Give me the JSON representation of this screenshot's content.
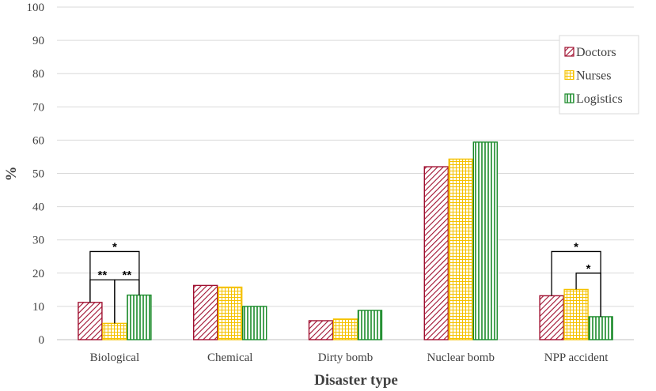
{
  "chart_data": {
    "type": "bar",
    "title": "",
    "xlabel": "Disaster type",
    "ylabel": "%",
    "ylim": [
      0,
      100
    ],
    "yticks": [
      0,
      10,
      20,
      30,
      40,
      50,
      60,
      70,
      80,
      90,
      100
    ],
    "grid": true,
    "legend_position": "top-right",
    "categories": [
      "Biological",
      "Chemical",
      "Dirty bomb",
      "Nuclear bomb",
      "NPP accident"
    ],
    "series": [
      {
        "name": "Doctors",
        "values": [
          11.2,
          16.3,
          5.7,
          52.0,
          13.2
        ],
        "color": "#a01030",
        "pattern": "diagonal"
      },
      {
        "name": "Nurses",
        "values": [
          4.9,
          15.8,
          6.2,
          54.3,
          15.1
        ],
        "color": "#f5c200",
        "pattern": "grid"
      },
      {
        "name": "Logistics",
        "values": [
          13.4,
          10.0,
          8.8,
          59.4,
          6.9
        ],
        "color": "#1a8a2a",
        "pattern": "vertical"
      }
    ],
    "annotations": [
      {
        "category": "Biological",
        "from": "Doctors",
        "to": "Nurses",
        "label": "**",
        "top": 18
      },
      {
        "category": "Biological",
        "from": "Nurses",
        "to": "Logistics",
        "label": "**",
        "top": 18
      },
      {
        "category": "Biological",
        "from": "Doctors",
        "to": "Logistics",
        "label": "*",
        "top": 26.5
      },
      {
        "category": "NPP accident",
        "from": "Doctors",
        "to": "Logistics",
        "label": "*",
        "top": 26.5
      },
      {
        "category": "NPP accident",
        "from": "Nurses",
        "to": "Logistics",
        "label": "*",
        "top": 20
      }
    ]
  }
}
